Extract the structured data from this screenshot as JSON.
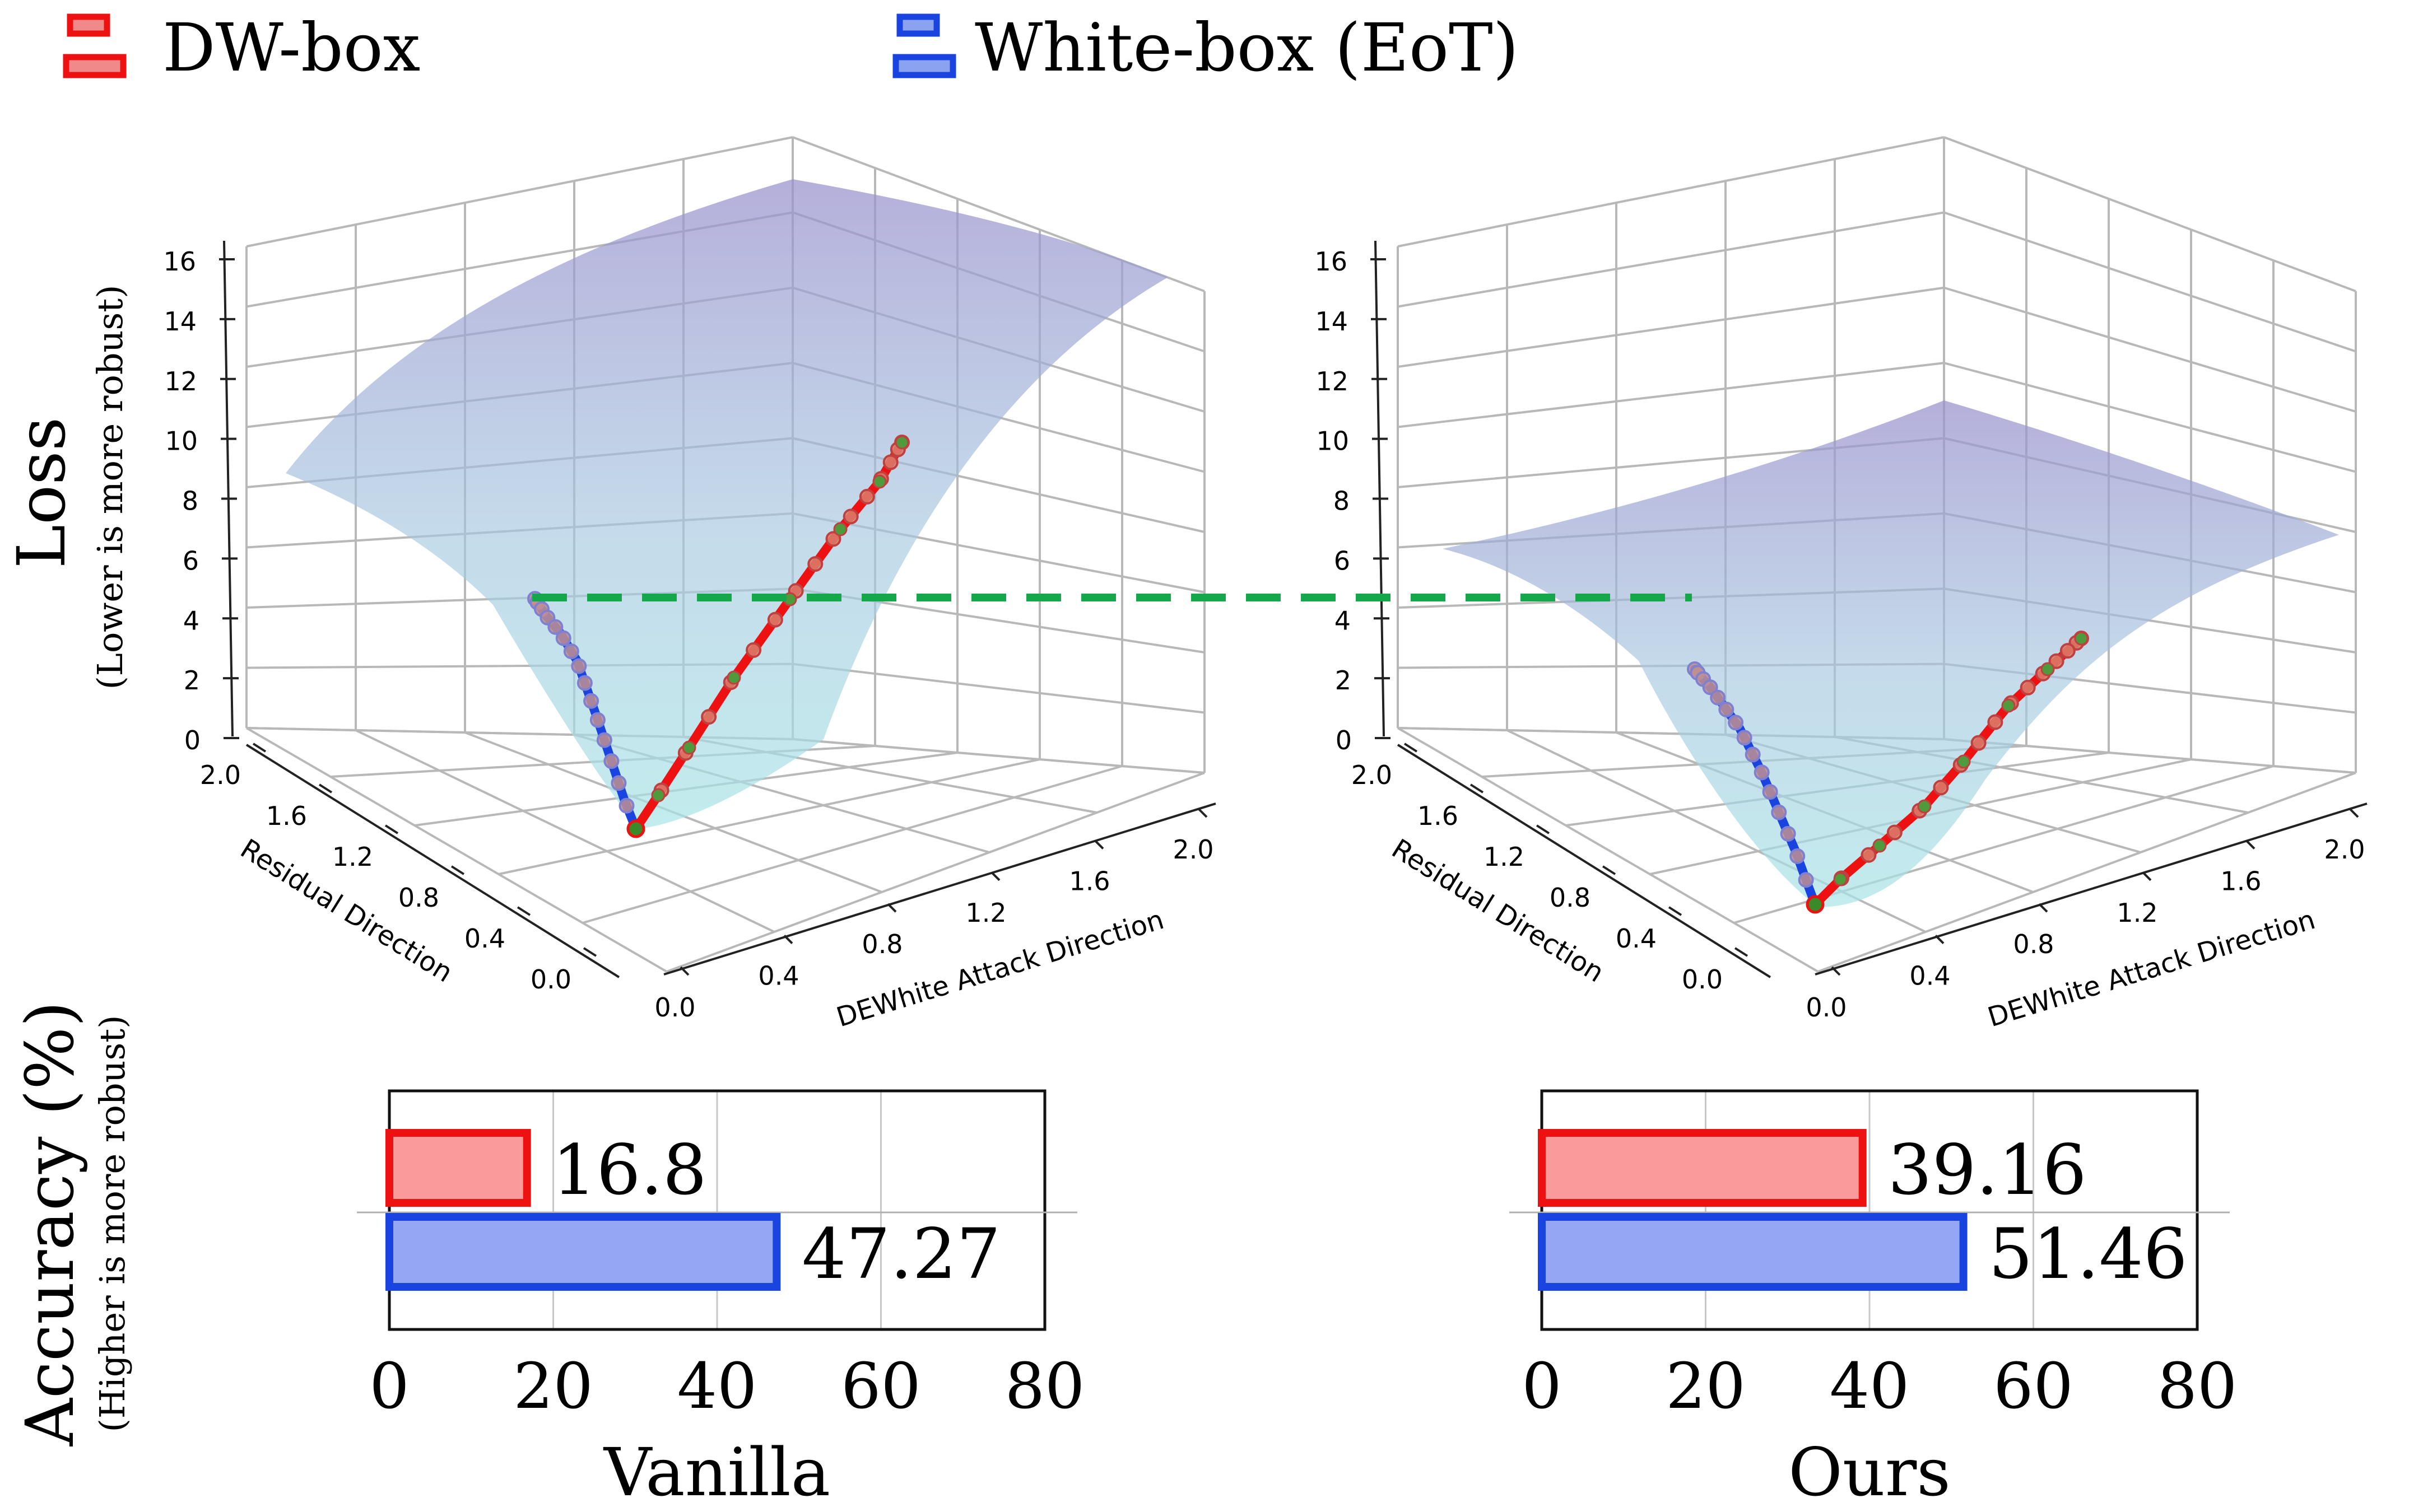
{
  "legend": [
    {
      "label": "DW-box",
      "edge": "#ee1111",
      "fill": "#f08a8a"
    },
    {
      "label": "White-box (EoT)",
      "edge": "#1a44e0",
      "fill": "#8aa2f0"
    }
  ],
  "colors": {
    "dw": "#ee1111",
    "dw_fill": "#fa9a9a",
    "wb": "#1a44e0",
    "wb_fill": "#94a6f4",
    "ref_line": "#14a84a",
    "surface_top": "#9a90cc",
    "surface_bottom": "#a8e2e8",
    "marker_dw": "#d98070",
    "marker_wb": "#c39090",
    "marker_green": "#4f9a3a"
  },
  "ylabel_loss": {
    "main": "Loss",
    "sub": "(Lower is more robust)"
  },
  "ylabel_acc": {
    "main": "Accuracy (%)",
    "sub": "(Higher is more robust)"
  },
  "chart_data": [
    {
      "type": "surface3d",
      "panel": "Vanilla",
      "zlabel": "Loss",
      "xlabel": "DEWhite Attack Direction",
      "ylabel": "Residual Direction",
      "z_ticks": [
        "0",
        "2",
        "4",
        "6",
        "8",
        "10",
        "12",
        "14",
        "16"
      ],
      "x_ticks": [
        "0.0",
        "0.4",
        "0.8",
        "1.2",
        "1.6",
        "2.0"
      ],
      "y_ticks": [
        "0.0",
        "0.4",
        "0.8",
        "1.2",
        "1.6",
        "2.0"
      ],
      "zlim": [
        0,
        16
      ],
      "series": [
        {
          "name": "DW-box path",
          "z_start": 0.2,
          "z_end": 10.2
        },
        {
          "name": "White-box (EoT) path",
          "z_start": 0.2,
          "z_end": 4.6
        }
      ]
    },
    {
      "type": "surface3d",
      "panel": "Ours",
      "zlabel": "Loss",
      "xlabel": "DEWhite Attack Direction",
      "ylabel": "Residual Direction",
      "z_ticks": [
        "0",
        "2",
        "4",
        "6",
        "8",
        "10",
        "12",
        "14",
        "16"
      ],
      "x_ticks": [
        "0.0",
        "0.4",
        "0.8",
        "1.2",
        "1.6",
        "2.0"
      ],
      "y_ticks": [
        "0.0",
        "0.4",
        "0.8",
        "1.2",
        "1.6",
        "2.0"
      ],
      "zlim": [
        0,
        16
      ],
      "series": [
        {
          "name": "DW-box path",
          "z_start": 0.2,
          "z_end": 3.6
        },
        {
          "name": "White-box (EoT) path",
          "z_start": 0.2,
          "z_end": 3.0
        }
      ]
    },
    {
      "type": "bar",
      "panel": "Vanilla",
      "orientation": "horizontal",
      "xlabel": "Vanilla",
      "xlim": [
        0,
        80
      ],
      "x_ticks": [
        "0",
        "20",
        "40",
        "60",
        "80"
      ],
      "categories": [
        "DW-box",
        "White-box (EoT)"
      ],
      "values": [
        16.8,
        47.27
      ],
      "value_labels": [
        "16.8",
        "47.27"
      ]
    },
    {
      "type": "bar",
      "panel": "Ours",
      "orientation": "horizontal",
      "xlabel": "Ours",
      "xlim": [
        0,
        80
      ],
      "x_ticks": [
        "0",
        "20",
        "40",
        "60",
        "80"
      ],
      "categories": [
        "DW-box",
        "White-box (EoT)"
      ],
      "values": [
        39.16,
        51.46
      ],
      "value_labels": [
        "39.16",
        "51.46"
      ]
    }
  ]
}
